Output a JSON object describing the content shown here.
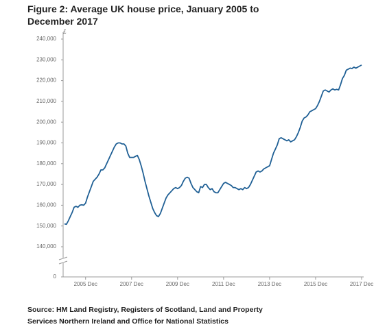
{
  "chart_data": {
    "type": "line",
    "title": "Figure 2: Average UK house price, January 2005 to December 2017",
    "y_unit": "£",
    "source": "Source: HM Land Registry, Registers of Scotland, Land and Property Services Northern Ireland and Office for National Statistics",
    "axis_break": true,
    "categories": [
      null,
      null,
      null,
      null,
      null,
      null,
      null,
      null,
      null,
      null,
      null,
      "2005 Dec",
      null,
      null,
      null,
      null,
      null,
      null,
      null,
      null,
      null,
      null,
      null,
      null,
      null,
      null,
      null,
      null,
      null,
      null,
      null,
      null,
      null,
      null,
      null,
      "2007 Dec",
      null,
      null,
      null,
      null,
      null,
      null,
      null,
      null,
      null,
      null,
      null,
      null,
      null,
      null,
      null,
      null,
      null,
      null,
      null,
      null,
      null,
      null,
      null,
      "2009 Dec",
      null,
      null,
      null,
      null,
      null,
      null,
      null,
      null,
      null,
      null,
      null,
      null,
      null,
      null,
      null,
      null,
      null,
      null,
      null,
      null,
      null,
      null,
      null,
      "2011 Dec",
      null,
      null,
      null,
      null,
      null,
      null,
      null,
      null,
      null,
      null,
      null,
      null,
      null,
      null,
      null,
      null,
      null,
      null,
      null,
      null,
      null,
      null,
      null,
      "2013 Dec",
      null,
      null,
      null,
      null,
      null,
      null,
      null,
      null,
      null,
      null,
      null,
      null,
      null,
      null,
      null,
      null,
      null,
      null,
      null,
      null,
      null,
      null,
      null,
      "2015 Dec",
      null,
      null,
      null,
      null,
      null,
      null,
      null,
      null,
      null,
      null,
      null,
      null,
      null,
      null,
      null,
      null,
      null,
      null,
      null,
      null,
      null,
      null,
      null,
      "2017 Dec"
    ],
    "series": [
      {
        "color": "#206095",
        "values": [
          151000,
          150800,
          152500,
          154500,
          156500,
          159000,
          159500,
          159000,
          160000,
          160200,
          160000,
          161000,
          164000,
          166500,
          169000,
          171500,
          172500,
          173500,
          175000,
          177000,
          177000,
          178000,
          180000,
          182000,
          184000,
          186000,
          188000,
          189500,
          190000,
          190000,
          189500,
          189500,
          188500,
          185000,
          183000,
          183000,
          183000,
          183500,
          184000,
          182000,
          179000,
          175500,
          171500,
          168000,
          164500,
          161500,
          158500,
          156500,
          155000,
          154500,
          156000,
          158500,
          161000,
          163500,
          165000,
          166000,
          167000,
          168000,
          168500,
          168000,
          168500,
          169500,
          171500,
          173000,
          173500,
          173000,
          170500,
          168500,
          167500,
          166500,
          166000,
          169000,
          168500,
          170000,
          170000,
          168500,
          167500,
          168000,
          166500,
          166000,
          166000,
          167500,
          169000,
          170500,
          171000,
          170500,
          170000,
          169500,
          168500,
          168500,
          168000,
          167500,
          168000,
          167500,
          168500,
          168000,
          168500,
          170000,
          172000,
          174000,
          176000,
          176500,
          176000,
          176500,
          177500,
          178000,
          178500,
          179000,
          182000,
          185000,
          187000,
          189000,
          192000,
          192500,
          192000,
          191500,
          191000,
          191500,
          190500,
          191000,
          191500,
          193000,
          195000,
          197500,
          200500,
          202000,
          202500,
          203500,
          205000,
          205500,
          206000,
          206500,
          208000,
          210000,
          212500,
          215000,
          215500,
          215000,
          214500,
          215500,
          216000,
          215500,
          215800,
          215500,
          218000,
          221000,
          222500,
          225000,
          225500,
          226000,
          225800,
          226500,
          226000,
          226500,
          227000,
          227500
        ]
      }
    ],
    "ylim": [
      0,
      240000
    ],
    "yticks": [
      0,
      {
        "value": 140000,
        "label": "140,000"
      },
      {
        "value": 150000,
        "label": "150,000"
      },
      {
        "value": 160000,
        "label": "160,000"
      },
      {
        "value": 170000,
        "label": "170,000"
      },
      {
        "value": 180000,
        "label": "180,000"
      },
      {
        "value": 190000,
        "label": "190,000"
      },
      {
        "value": 200000,
        "label": "200,000"
      },
      {
        "value": 210000,
        "label": "210,000"
      },
      {
        "value": 220000,
        "label": "220,000"
      },
      {
        "value": 230000,
        "label": "230,000"
      },
      {
        "value": 240000,
        "label": "240,000"
      }
    ],
    "grid": false
  }
}
